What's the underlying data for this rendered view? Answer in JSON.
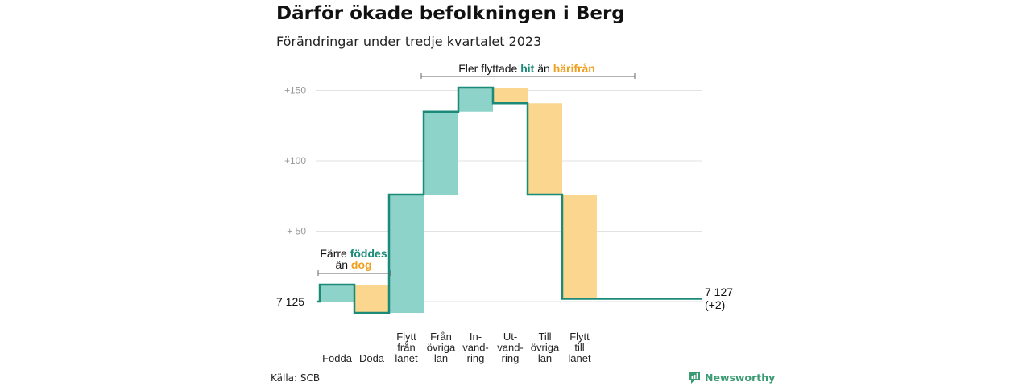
{
  "header": {
    "title": "Därför ökade befolkningen i Berg",
    "subtitle": "Förändringar under tredje kvartalet 2023"
  },
  "footer": {
    "source": "Källa: SCB",
    "brand": "Newsworthy"
  },
  "colors": {
    "increase": "#8dd3c9",
    "decrease": "#fbd68e",
    "line": "#1c8a78",
    "accent_teal": "#1c8a78",
    "accent_orange": "#f0a020",
    "grid": "#e2e2e2",
    "brand": "#3a9a72"
  },
  "annotations": {
    "left": {
      "line1_prefix": "Färre ",
      "line1_highlight": "föddes",
      "line2_prefix": "än ",
      "line2_highlight": "dog"
    },
    "right": {
      "prefix": "Fler flyttade ",
      "highlight1": "hit",
      "middle": " än ",
      "highlight2": "härifrån"
    }
  },
  "chart_data": {
    "type": "waterfall",
    "base_label": "7 125",
    "end_label": "7 127",
    "end_change_label": "(+2)",
    "y_tick_labels": [
      "+150",
      "+100",
      "+  50"
    ],
    "y_ticks": [
      150,
      100,
      50
    ],
    "ylim": [
      -8,
      158
    ],
    "grid": true,
    "categories": [
      {
        "lines": [
          "Födda"
        ],
        "start": 0,
        "end": 12
      },
      {
        "lines": [
          "Döda"
        ],
        "start": 12,
        "end": -8
      },
      {
        "lines": [
          "Flytt",
          "från",
          "länet"
        ],
        "start": -8,
        "end": 76
      },
      {
        "lines": [
          "Från",
          "övriga",
          "län"
        ],
        "start": 76,
        "end": 135
      },
      {
        "lines": [
          "In-",
          "vand-",
          "ring"
        ],
        "start": 135,
        "end": 152
      },
      {
        "lines": [
          "Ut-",
          "vand-",
          "ring"
        ],
        "start": 152,
        "end": 141
      },
      {
        "lines": [
          "Till",
          "övriga",
          "län"
        ],
        "start": 141,
        "end": 76
      },
      {
        "lines": [
          "Flytt",
          "till",
          "länet"
        ],
        "start": 76,
        "end": 2
      }
    ]
  }
}
